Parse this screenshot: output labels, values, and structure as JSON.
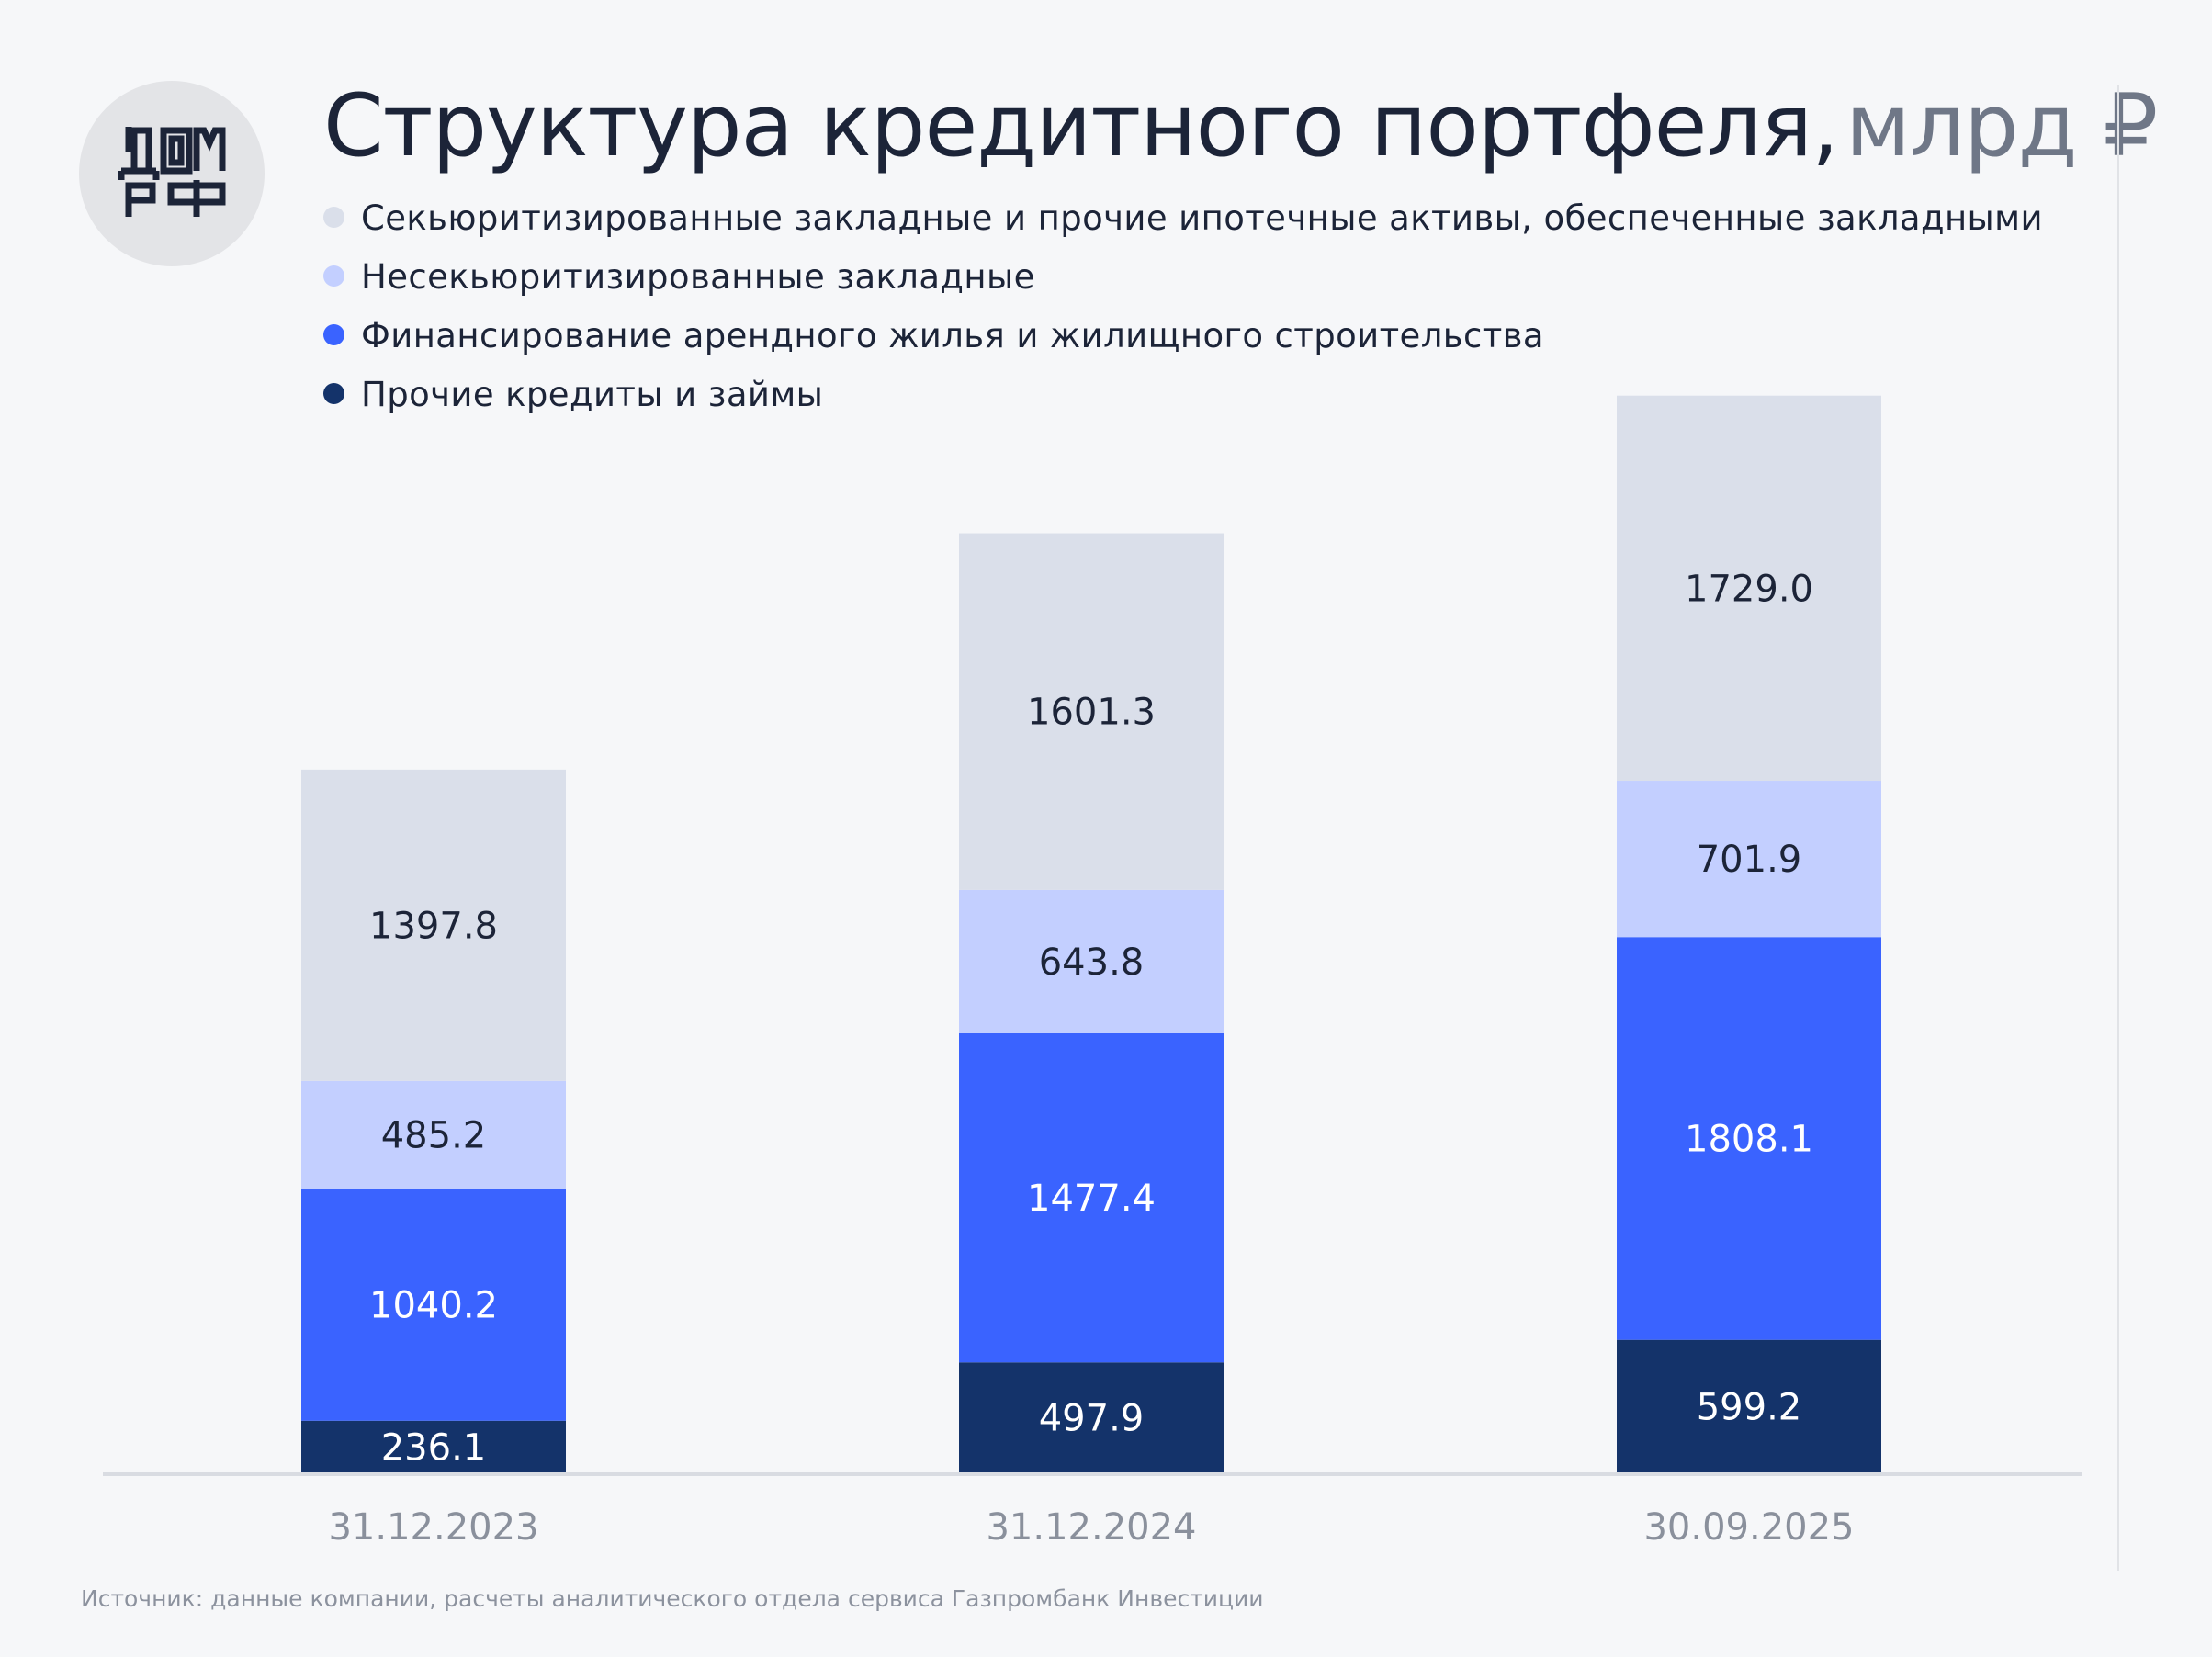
{
  "header": {
    "logo_text": "ДОМ РФ",
    "title_main": "Структура кредитного портфеля,",
    "title_unit": "млрд ₽"
  },
  "colors": {
    "securitized": "#dadfea",
    "non_securitized": "#c3cfff",
    "rental_financing": "#3a63ff",
    "other_loans": "#14336a",
    "label_dark": "#1c2438",
    "label_light": "#ffffff",
    "background": "#f6f7f9"
  },
  "legend": [
    {
      "label": "Секьюритизированные закладные и прочие ипотечные активы, обеспеченные закладными",
      "color": "#dadfea"
    },
    {
      "label": "Несекьюритизированные закладные",
      "color": "#c3cfff"
    },
    {
      "label": "Финансирование арендного жилья и жилищного строительства",
      "color": "#3a63ff"
    },
    {
      "label": "Прочие кредиты и займы",
      "color": "#14336a"
    }
  ],
  "footer": {
    "source": "Источник: данные компании, расчеты аналитического отдела сервиса Газпромбанк Инвестиции"
  },
  "chart_data": {
    "type": "bar",
    "stacked": true,
    "categories": [
      "31.12.2023",
      "31.12.2024",
      "30.09.2025"
    ],
    "series": [
      {
        "name": "Прочие кредиты и займы",
        "values": [
          236.1,
          497.9,
          599.2
        ],
        "labels": [
          "236.1",
          "497.9",
          "599.2"
        ],
        "color": "#14336a",
        "label_color": "#ffffff"
      },
      {
        "name": "Финансирование арендного жилья и жилищного строительства",
        "values": [
          1040.2,
          1477.4,
          1808.1
        ],
        "labels": [
          "1040.2",
          "1477.4",
          "1808.1"
        ],
        "color": "#3a63ff",
        "label_color": "#ffffff"
      },
      {
        "name": "Несекьюритизированные закладные",
        "values": [
          485.2,
          643.8,
          701.9
        ],
        "labels": [
          "485.2",
          "643.8",
          "701.9"
        ],
        "color": "#c3cfff",
        "label_color": "#1c2438"
      },
      {
        "name": "Секьюритизированные закладные и прочие ипотечные активы, обеспеченные закладными",
        "values": [
          1397.8,
          1601.3,
          1729.0
        ],
        "labels": [
          "1397.8",
          "1601.3",
          "1729.0"
        ],
        "color": "#dadfea",
        "label_color": "#1c2438"
      }
    ],
    "ylim": [
      0,
      4900
    ],
    "grid": false,
    "legend_position": "top-left",
    "title": "Структура кредитного портфеля, млрд ₽",
    "xlabel": "",
    "ylabel": ""
  }
}
